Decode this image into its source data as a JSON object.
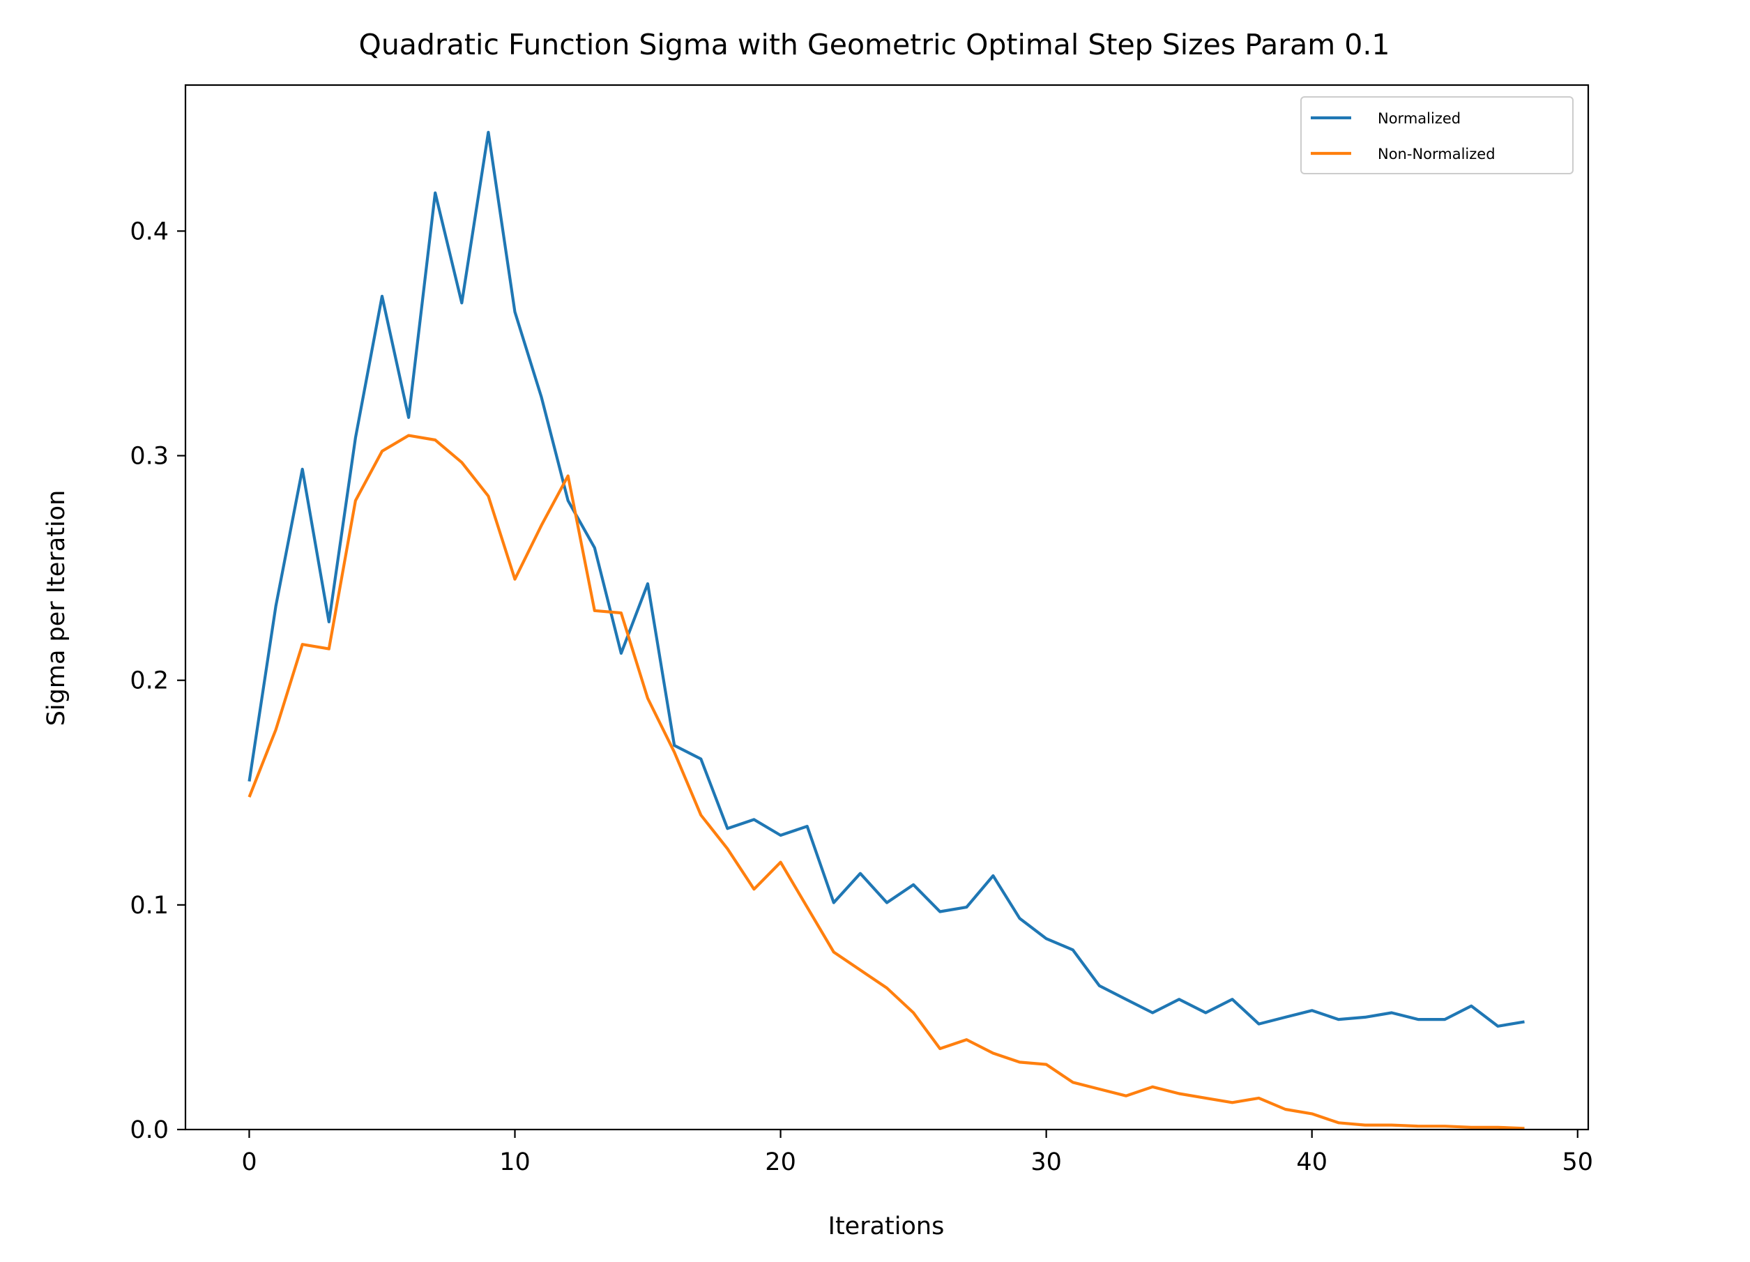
{
  "chart_data": {
    "type": "line",
    "title": "Quadratic Function Sigma with Geometric Optimal Step Sizes Param 0.1",
    "xlabel": "Iterations",
    "ylabel": "Sigma per Iteration",
    "xlim": [
      -2.4,
      50.4
    ],
    "ylim": [
      0.0,
      0.465
    ],
    "xticks": [
      0,
      10,
      20,
      30,
      40,
      50
    ],
    "xtick_labels": [
      "0",
      "10",
      "20",
      "30",
      "40",
      "50"
    ],
    "yticks": [
      0.0,
      0.1,
      0.2,
      0.3,
      0.4
    ],
    "ytick_labels": [
      "0.0",
      "0.1",
      "0.2",
      "0.3",
      "0.4"
    ],
    "grid": false,
    "legend_position": "top-right",
    "x": [
      0,
      1,
      2,
      3,
      4,
      5,
      6,
      7,
      8,
      9,
      10,
      11,
      12,
      13,
      14,
      15,
      16,
      17,
      18,
      19,
      20,
      21,
      22,
      23,
      24,
      25,
      26,
      27,
      28,
      29,
      30,
      31,
      32,
      33,
      34,
      35,
      36,
      37,
      38,
      39,
      40,
      41,
      42,
      43,
      44,
      45,
      46,
      47,
      48
    ],
    "series": [
      {
        "name": "Normalized",
        "color": "#1f77b4",
        "values": [
          0.155,
          0.233,
          0.294,
          0.226,
          0.308,
          0.371,
          0.317,
          0.417,
          0.368,
          0.444,
          0.364,
          0.326,
          0.28,
          0.259,
          0.212,
          0.243,
          0.171,
          0.165,
          0.134,
          0.138,
          0.131,
          0.135,
          0.101,
          0.114,
          0.101,
          0.109,
          0.097,
          0.099,
          0.113,
          0.094,
          0.085,
          0.08,
          0.064,
          0.058,
          0.052,
          0.058,
          0.052,
          0.058,
          0.047,
          0.05,
          0.053,
          0.049,
          0.05,
          0.052,
          0.049,
          0.049,
          0.055,
          0.046,
          0.048
        ]
      },
      {
        "name": "Non-Normalized",
        "color": "#ff7f0e",
        "values": [
          0.148,
          0.178,
          0.216,
          0.214,
          0.28,
          0.302,
          0.309,
          0.307,
          0.297,
          0.282,
          0.245,
          0.269,
          0.291,
          0.231,
          0.23,
          0.192,
          0.168,
          0.14,
          0.125,
          0.107,
          0.119,
          0.099,
          0.079,
          0.071,
          0.063,
          0.052,
          0.036,
          0.04,
          0.034,
          0.03,
          0.029,
          0.021,
          0.018,
          0.015,
          0.019,
          0.016,
          0.014,
          0.012,
          0.014,
          0.009,
          0.007,
          0.003,
          0.002,
          0.002,
          0.0015,
          0.0015,
          0.001,
          0.001,
          0.0005
        ]
      }
    ]
  }
}
